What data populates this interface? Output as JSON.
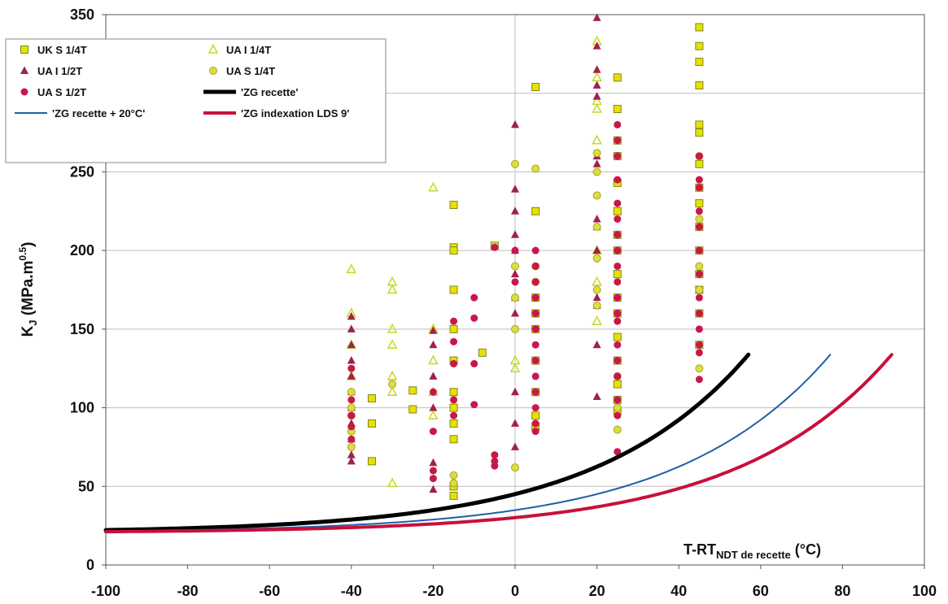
{
  "chart_data": {
    "type": "scatter",
    "title": "",
    "xlabel": {
      "main": "T-RT",
      "sub": "NDT de recette",
      "unit": " (°C)"
    },
    "ylabel": {
      "main": "K",
      "sub": "J",
      "unit": " (MPa.m",
      "sup": "0.5",
      "close": ")"
    },
    "xlim": [
      -100,
      100
    ],
    "ylim": [
      0,
      350
    ],
    "xticks": [
      -100,
      -80,
      -60,
      -40,
      -20,
      0,
      20,
      40,
      60,
      80,
      100
    ],
    "yticks": [
      0,
      50,
      100,
      150,
      200,
      250,
      300,
      350
    ],
    "grid": true,
    "legend_position": "top-left",
    "series": [
      {
        "name": "UK S 1/4T",
        "marker": "square",
        "color": "#e8e000",
        "edge": "#7a8a20",
        "points": [
          [
            -35,
            106
          ],
          [
            -35,
            90
          ],
          [
            -35,
            66
          ],
          [
            -25,
            111
          ],
          [
            -25,
            99
          ],
          [
            -15,
            229
          ],
          [
            -15,
            202
          ],
          [
            -15,
            200
          ],
          [
            -15,
            175
          ],
          [
            -15,
            150
          ],
          [
            -15,
            130
          ],
          [
            -15,
            110
          ],
          [
            -15,
            100
          ],
          [
            -15,
            90
          ],
          [
            -15,
            80
          ],
          [
            -15,
            50
          ],
          [
            -15,
            44
          ],
          [
            -8,
            135
          ],
          [
            -5,
            203
          ],
          [
            5,
            304
          ],
          [
            5,
            225
          ],
          [
            5,
            170
          ],
          [
            5,
            160
          ],
          [
            5,
            150
          ],
          [
            5,
            130
          ],
          [
            5,
            110
          ],
          [
            5,
            95
          ],
          [
            5,
            88
          ],
          [
            25,
            310
          ],
          [
            25,
            290
          ],
          [
            25,
            270
          ],
          [
            25,
            260
          ],
          [
            25,
            243
          ],
          [
            25,
            225
          ],
          [
            25,
            210
          ],
          [
            25,
            200
          ],
          [
            25,
            185
          ],
          [
            25,
            170
          ],
          [
            25,
            160
          ],
          [
            25,
            145
          ],
          [
            25,
            130
          ],
          [
            25,
            115
          ],
          [
            25,
            105
          ],
          [
            25,
            98
          ],
          [
            45,
            342
          ],
          [
            45,
            330
          ],
          [
            45,
            320
          ],
          [
            45,
            305
          ],
          [
            45,
            280
          ],
          [
            45,
            275
          ],
          [
            45,
            255
          ],
          [
            45,
            240
          ],
          [
            45,
            230
          ],
          [
            45,
            215
          ],
          [
            45,
            200
          ],
          [
            45,
            185
          ],
          [
            45,
            175
          ],
          [
            45,
            160
          ],
          [
            45,
            140
          ]
        ]
      },
      {
        "name": "UA I 1/4T",
        "marker": "triangle-open",
        "color": "#c8d820",
        "points": [
          [
            -40,
            188
          ],
          [
            -40,
            160
          ],
          [
            -40,
            140
          ],
          [
            -40,
            120
          ],
          [
            -30,
            180
          ],
          [
            -30,
            175
          ],
          [
            -30,
            150
          ],
          [
            -30,
            140
          ],
          [
            -30,
            120
          ],
          [
            -30,
            110
          ],
          [
            -30,
            52
          ],
          [
            -20,
            240
          ],
          [
            -20,
            150
          ],
          [
            -20,
            130
          ],
          [
            -20,
            110
          ],
          [
            -20,
            95
          ],
          [
            0,
            130
          ],
          [
            0,
            125
          ],
          [
            20,
            333
          ],
          [
            20,
            310
          ],
          [
            20,
            295
          ],
          [
            20,
            290
          ],
          [
            20,
            270
          ],
          [
            20,
            200
          ],
          [
            20,
            180
          ],
          [
            20,
            155
          ]
        ]
      },
      {
        "name": "UA I 1/2T",
        "marker": "triangle",
        "color": "#a02050",
        "points": [
          [
            -40,
            158
          ],
          [
            -40,
            150
          ],
          [
            -40,
            140
          ],
          [
            -40,
            130
          ],
          [
            -40,
            120
          ],
          [
            -40,
            110
          ],
          [
            -40,
            100
          ],
          [
            -40,
            90
          ],
          [
            -40,
            80
          ],
          [
            -40,
            70
          ],
          [
            -40,
            66
          ],
          [
            -20,
            149
          ],
          [
            -20,
            140
          ],
          [
            -20,
            120
          ],
          [
            -20,
            100
          ],
          [
            -20,
            65
          ],
          [
            -20,
            48
          ],
          [
            0,
            280
          ],
          [
            0,
            239
          ],
          [
            0,
            225
          ],
          [
            0,
            210
          ],
          [
            0,
            200
          ],
          [
            0,
            185
          ],
          [
            0,
            170
          ],
          [
            0,
            160
          ],
          [
            0,
            110
          ],
          [
            0,
            90
          ],
          [
            0,
            75
          ],
          [
            20,
            348
          ],
          [
            20,
            330
          ],
          [
            20,
            315
          ],
          [
            20,
            305
          ],
          [
            20,
            298
          ],
          [
            20,
            260
          ],
          [
            20,
            255
          ],
          [
            20,
            220
          ],
          [
            20,
            215
          ],
          [
            20,
            200
          ],
          [
            20,
            170
          ],
          [
            20,
            165
          ],
          [
            20,
            140
          ],
          [
            20,
            107
          ]
        ]
      },
      {
        "name": "UA S 1/4T",
        "marker": "circle-yellow",
        "color": "#d8e040",
        "edge": "#b0a020",
        "points": [
          [
            -40,
            110
          ],
          [
            -40,
            100
          ],
          [
            -40,
            95
          ],
          [
            -40,
            85
          ],
          [
            -40,
            75
          ],
          [
            -30,
            115
          ],
          [
            -15,
            57
          ],
          [
            -15,
            52
          ],
          [
            0,
            255
          ],
          [
            0,
            190
          ],
          [
            0,
            170
          ],
          [
            0,
            150
          ],
          [
            0,
            62
          ],
          [
            5,
            252
          ],
          [
            5,
            190
          ],
          [
            5,
            180
          ],
          [
            20,
            262
          ],
          [
            20,
            250
          ],
          [
            20,
            235
          ],
          [
            20,
            215
          ],
          [
            20,
            195
          ],
          [
            20,
            175
          ],
          [
            20,
            165
          ],
          [
            25,
            120
          ],
          [
            25,
            100
          ],
          [
            25,
            86
          ],
          [
            45,
            260
          ],
          [
            45,
            240
          ],
          [
            45,
            220
          ],
          [
            45,
            200
          ],
          [
            45,
            190
          ],
          [
            45,
            175
          ],
          [
            45,
            160
          ],
          [
            45,
            125
          ]
        ]
      },
      {
        "name": "UA S 1/2T",
        "marker": "circle",
        "color": "#c81848",
        "points": [
          [
            -40,
            125
          ],
          [
            -40,
            105
          ],
          [
            -40,
            95
          ],
          [
            -40,
            88
          ],
          [
            -40,
            80
          ],
          [
            -20,
            110
          ],
          [
            -20,
            85
          ],
          [
            -20,
            60
          ],
          [
            -20,
            55
          ],
          [
            -15,
            155
          ],
          [
            -15,
            142
          ],
          [
            -15,
            128
          ],
          [
            -15,
            105
          ],
          [
            -15,
            95
          ],
          [
            -10,
            170
          ],
          [
            -10,
            157
          ],
          [
            -10,
            128
          ],
          [
            -10,
            102
          ],
          [
            -5,
            202
          ],
          [
            -5,
            70
          ],
          [
            -5,
            66
          ],
          [
            -5,
            63
          ],
          [
            0,
            200
          ],
          [
            0,
            180
          ],
          [
            5,
            200
          ],
          [
            5,
            190
          ],
          [
            5,
            180
          ],
          [
            5,
            170
          ],
          [
            5,
            160
          ],
          [
            5,
            150
          ],
          [
            5,
            140
          ],
          [
            5,
            130
          ],
          [
            5,
            120
          ],
          [
            5,
            110
          ],
          [
            5,
            100
          ],
          [
            5,
            90
          ],
          [
            5,
            85
          ],
          [
            25,
            280
          ],
          [
            25,
            270
          ],
          [
            25,
            260
          ],
          [
            25,
            245
          ],
          [
            25,
            230
          ],
          [
            25,
            220
          ],
          [
            25,
            210
          ],
          [
            25,
            200
          ],
          [
            25,
            190
          ],
          [
            25,
            180
          ],
          [
            25,
            170
          ],
          [
            25,
            160
          ],
          [
            25,
            155
          ],
          [
            25,
            140
          ],
          [
            25,
            130
          ],
          [
            25,
            120
          ],
          [
            25,
            105
          ],
          [
            25,
            95
          ],
          [
            25,
            72
          ],
          [
            45,
            260
          ],
          [
            45,
            245
          ],
          [
            45,
            240
          ],
          [
            45,
            225
          ],
          [
            45,
            215
          ],
          [
            45,
            200
          ],
          [
            45,
            185
          ],
          [
            45,
            170
          ],
          [
            45,
            160
          ],
          [
            45,
            150
          ],
          [
            45,
            140
          ],
          [
            45,
            135
          ],
          [
            45,
            118
          ]
        ]
      }
    ],
    "curves": [
      {
        "name": "'ZG recette'",
        "color": "#000000",
        "width": 5,
        "shift": 0
      },
      {
        "name": "'ZG recette + 20°C'",
        "color": "#1f5fa8",
        "width": 2,
        "shift": 20
      },
      {
        "name": "'ZG indexation LDS 9'",
        "color": "#c8103a",
        "width": 4,
        "shift": 35
      }
    ],
    "curve_model": {
      "a": 20.5,
      "b": 11.0,
      "c": 0.0268,
      "x_end_base": 57
    }
  }
}
